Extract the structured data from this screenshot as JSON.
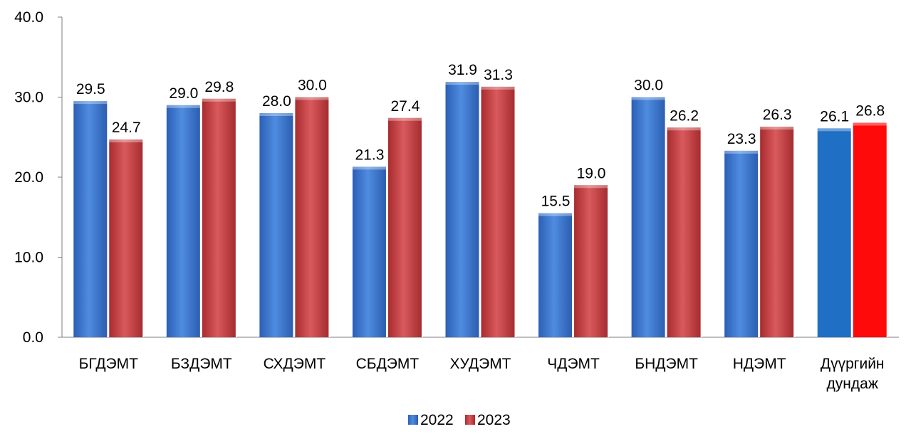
{
  "chart_data": {
    "type": "bar",
    "title": "",
    "xlabel": "",
    "ylabel": "",
    "ylim": [
      0,
      40
    ],
    "yticks": [
      "0.0",
      "10.0",
      "20.0",
      "30.0",
      "40.0"
    ],
    "categories": [
      [
        "БГДЭМТ"
      ],
      [
        "БЗДЭМТ"
      ],
      [
        "СХДЭМТ"
      ],
      [
        "СБДЭМТ"
      ],
      [
        "ХУДЭМТ"
      ],
      [
        "ЧДЭМТ"
      ],
      [
        "БНДЭМТ"
      ],
      [
        "НДЭМТ"
      ],
      [
        "Дүүргийн",
        "дундаж"
      ]
    ],
    "series": [
      {
        "name": "2022",
        "values": [
          29.5,
          29.0,
          28.0,
          21.3,
          31.9,
          15.5,
          30.0,
          23.3,
          26.1
        ],
        "labels": [
          "29.5",
          "29.0",
          "28.0",
          "21.3",
          "31.9",
          "15.5",
          "30.0",
          "23.3",
          "26.1"
        ],
        "color": "#3a6fc4",
        "highlight_color": "#1f6fc4"
      },
      {
        "name": "2023",
        "values": [
          24.7,
          29.8,
          30.0,
          27.4,
          31.3,
          19.0,
          26.2,
          26.3,
          26.8
        ],
        "labels": [
          "24.7",
          "29.8",
          "30.0",
          "27.4",
          "31.3",
          "19.0",
          "26.2",
          "26.3",
          "26.8"
        ],
        "color": "#c0363a",
        "highlight_color": "#ff0a0a"
      }
    ],
    "grid": false,
    "legend": "bottom-center"
  }
}
